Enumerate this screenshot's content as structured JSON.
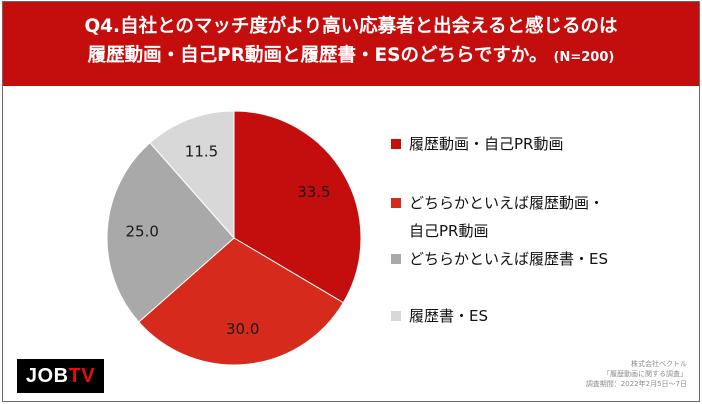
{
  "title": {
    "line1": "Q4.自社とのマッチ度がより高い応募者と出会えると感じるのは",
    "line2": "履歴動画・自己PR動画と履歴書・ESのどちらですか。",
    "n_note": "(N=200)"
  },
  "chart_data": {
    "type": "pie",
    "unit": "%",
    "labels": [
      "履歴動画・自己PR動画",
      "どちらかといえば履歴動画・自己PR動画",
      "どちらかといえば履歴書・ES",
      "履歴書・ES"
    ],
    "values": [
      33.5,
      30.0,
      25.0,
      11.5
    ],
    "value_labels": [
      "33.5",
      "30.0",
      "25.0",
      "11.5"
    ],
    "colors": [
      "#c40d0d",
      "#d52a1c",
      "#a9a9a9",
      "#d8d8d8"
    ],
    "start_angle_deg": 0,
    "direction": "clockwise",
    "legend_position": "right"
  },
  "legend": {
    "item1": "履歴動画・自己PR動画",
    "item2_line1": "どちらかといえば履歴動画・",
    "item2_line2": "自己PR動画",
    "item3": "どちらかといえば履歴書・ES",
    "item4": "履歴書・ES"
  },
  "logo": {
    "job": "JOB",
    "tv": "TV"
  },
  "source": {
    "line1": "株式会社ベクトル",
    "line2": "「履歴動画に関する調査」",
    "line3": "調査期間：2022年2月5日～7日"
  }
}
